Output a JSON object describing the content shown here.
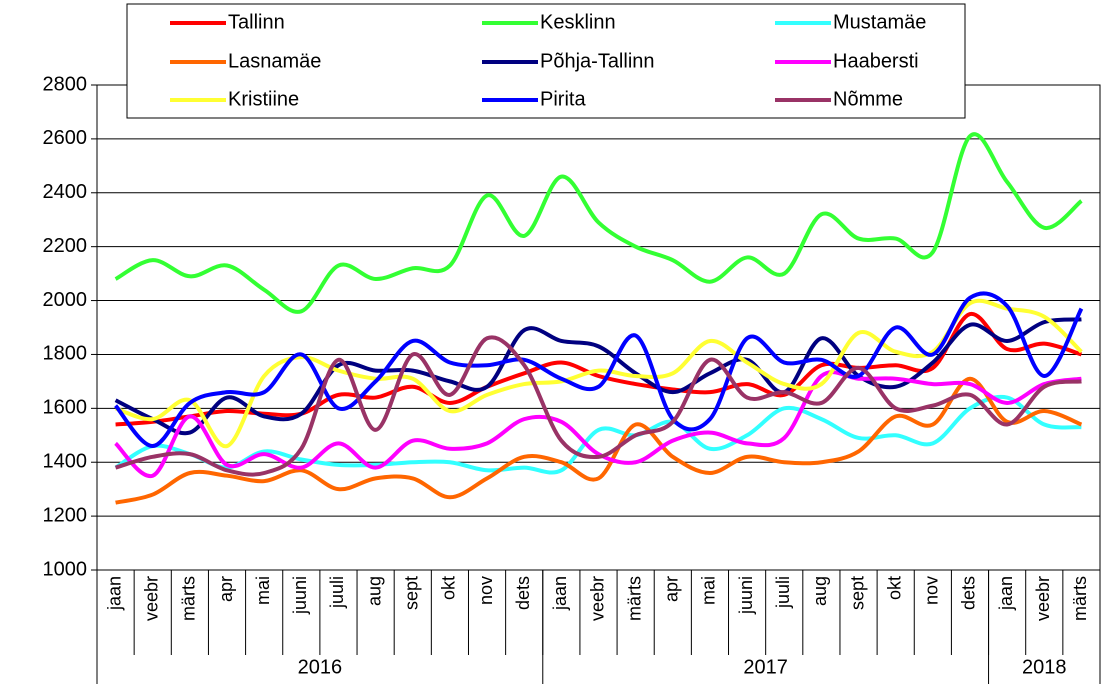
{
  "chart_data": {
    "type": "line",
    "category_groups": [
      {
        "label": "2016",
        "categories": [
          "jaan",
          "veebr",
          "märts",
          "apr",
          "mai",
          "juuni",
          "juuli",
          "aug",
          "sept",
          "okt",
          "nov",
          "dets"
        ]
      },
      {
        "label": "2017",
        "categories": [
          "jaan",
          "veebr",
          "märts",
          "apr",
          "mai",
          "juuni",
          "juuli",
          "aug",
          "sept",
          "okt",
          "nov",
          "dets"
        ]
      },
      {
        "label": "2018",
        "categories": [
          "jaan",
          "veebr",
          "märts"
        ]
      }
    ],
    "ylim": [
      1000,
      2800
    ],
    "yticks": [
      1000,
      1200,
      1400,
      1600,
      1800,
      2000,
      2200,
      2400,
      2600,
      2800
    ],
    "grid": true,
    "smooth": true,
    "series": [
      {
        "name": "Tallinn",
        "color": "#ff0000",
        "values": [
          1540,
          1550,
          1570,
          1590,
          1580,
          1580,
          1650,
          1640,
          1680,
          1620,
          1680,
          1730,
          1770,
          1720,
          1690,
          1670,
          1660,
          1690,
          1650,
          1760,
          1750,
          1760,
          1750,
          1950,
          1820,
          1840,
          1800
        ]
      },
      {
        "name": "Kesklinn",
        "color": "#33ff33",
        "values": [
          2080,
          2150,
          2090,
          2130,
          2040,
          1960,
          2130,
          2080,
          2120,
          2130,
          2390,
          2240,
          2460,
          2290,
          2200,
          2150,
          2070,
          2160,
          2100,
          2320,
          2230,
          2230,
          2180,
          2610,
          2440,
          2270,
          2370
        ]
      },
      {
        "name": "Mustamäe",
        "color": "#33ffff",
        "values": [
          1380,
          1460,
          1430,
          1380,
          1440,
          1410,
          1390,
          1390,
          1400,
          1400,
          1370,
          1380,
          1370,
          1520,
          1500,
          1550,
          1450,
          1500,
          1600,
          1560,
          1490,
          1500,
          1470,
          1600,
          1640,
          1540,
          1530
        ]
      },
      {
        "name": "Lasnamäe",
        "color": "#ff6600",
        "values": [
          1250,
          1280,
          1360,
          1350,
          1330,
          1370,
          1300,
          1340,
          1340,
          1270,
          1340,
          1420,
          1400,
          1340,
          1540,
          1420,
          1360,
          1420,
          1400,
          1400,
          1440,
          1570,
          1540,
          1710,
          1550,
          1590,
          1540
        ]
      },
      {
        "name": "Põhja-Tallinn",
        "color": "#000080",
        "values": [
          1630,
          1560,
          1510,
          1640,
          1570,
          1580,
          1760,
          1740,
          1740,
          1700,
          1680,
          1890,
          1850,
          1830,
          1730,
          1660,
          1730,
          1780,
          1660,
          1860,
          1720,
          1680,
          1770,
          1910,
          1850,
          1920,
          1930
        ]
      },
      {
        "name": "Haabersti",
        "color": "#ff00ff",
        "values": [
          1470,
          1350,
          1570,
          1390,
          1430,
          1380,
          1470,
          1380,
          1480,
          1450,
          1470,
          1560,
          1550,
          1430,
          1400,
          1480,
          1510,
          1470,
          1490,
          1720,
          1710,
          1710,
          1690,
          1690,
          1620,
          1690,
          1710
        ]
      },
      {
        "name": "Kristiine",
        "color": "#ffff33",
        "values": [
          1600,
          1560,
          1630,
          1460,
          1720,
          1790,
          1740,
          1710,
          1710,
          1590,
          1650,
          1690,
          1700,
          1740,
          1720,
          1730,
          1850,
          1770,
          1690,
          1690,
          1880,
          1810,
          1810,
          1990,
          1970,
          1940,
          1810
        ]
      },
      {
        "name": "Pirita",
        "color": "#0000ff",
        "values": [
          1610,
          1460,
          1620,
          1660,
          1660,
          1800,
          1600,
          1700,
          1850,
          1770,
          1760,
          1780,
          1710,
          1680,
          1870,
          1560,
          1560,
          1860,
          1770,
          1780,
          1720,
          1900,
          1800,
          2010,
          1980,
          1720,
          1970
        ]
      },
      {
        "name": "Nõmme",
        "color": "#993366",
        "values": [
          1380,
          1420,
          1430,
          1370,
          1360,
          1450,
          1780,
          1520,
          1800,
          1650,
          1860,
          1760,
          1480,
          1420,
          1500,
          1550,
          1780,
          1640,
          1660,
          1620,
          1750,
          1600,
          1610,
          1650,
          1540,
          1680,
          1700
        ]
      }
    ]
  }
}
